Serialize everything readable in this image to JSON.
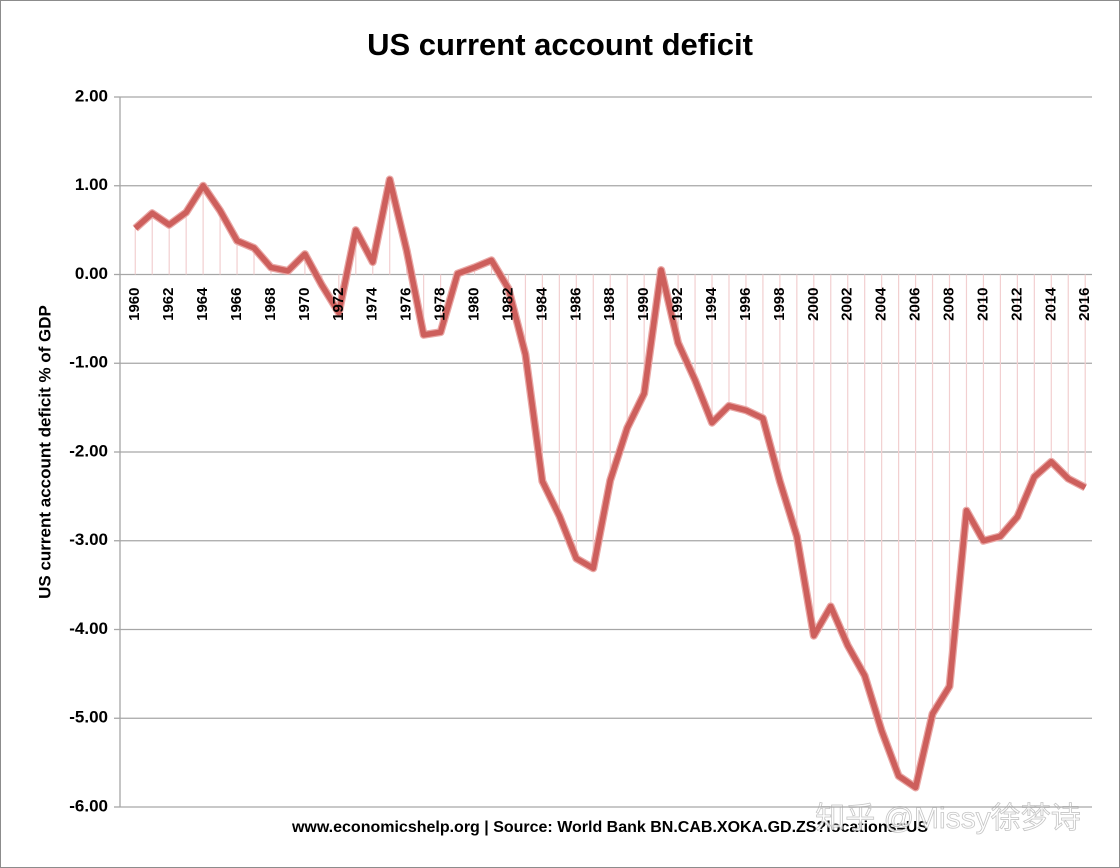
{
  "chart_data": {
    "type": "line",
    "title": "US current account deficit",
    "ylabel": "US current account deficit % of GDP",
    "footer": "www.economicshelp.org | Source:  World Bank BN.CAB.XOKA.GD.ZS?locations=US",
    "watermark": "知乎 @Missy徐梦诗",
    "color": "#cd5f5c",
    "x": [
      1960,
      1961,
      1962,
      1963,
      1964,
      1965,
      1966,
      1967,
      1968,
      1969,
      1970,
      1971,
      1972,
      1973,
      1974,
      1975,
      1976,
      1977,
      1978,
      1979,
      1980,
      1981,
      1982,
      1983,
      1984,
      1985,
      1986,
      1987,
      1988,
      1989,
      1990,
      1991,
      1992,
      1993,
      1994,
      1995,
      1996,
      1997,
      1998,
      1999,
      2000,
      2001,
      2002,
      2003,
      2004,
      2005,
      2006,
      2007,
      2008,
      2009,
      2010,
      2011,
      2012,
      2013,
      2014,
      2015,
      2016
    ],
    "values": [
      0.52,
      0.69,
      0.56,
      0.7,
      1.0,
      0.72,
      0.38,
      0.3,
      0.08,
      0.04,
      0.23,
      -0.12,
      -0.43,
      0.5,
      0.14,
      1.07,
      0.27,
      -0.68,
      -0.65,
      0.01,
      0.08,
      0.16,
      -0.16,
      -0.9,
      -2.33,
      -2.72,
      -3.2,
      -3.31,
      -2.32,
      -1.73,
      -1.34,
      0.05,
      -0.77,
      -1.19,
      -1.67,
      -1.48,
      -1.53,
      -1.62,
      -2.33,
      -2.95,
      -4.07,
      -3.74,
      -4.18,
      -4.52,
      -5.14,
      -5.65,
      -5.78,
      -4.95,
      -4.64,
      -2.66,
      -3.0,
      -2.95,
      -2.73,
      -2.28,
      -2.11,
      -2.3,
      -2.4
    ],
    "xlim": [
      1959.1,
      2016.4
    ],
    "xticks": [
      1960,
      1962,
      1964,
      1966,
      1968,
      1970,
      1972,
      1974,
      1976,
      1978,
      1980,
      1982,
      1984,
      1986,
      1988,
      1990,
      1992,
      1994,
      1996,
      1998,
      2000,
      2002,
      2004,
      2006,
      2008,
      2010,
      2012,
      2014,
      2016
    ],
    "ylim": [
      -6,
      2
    ],
    "yticks": [
      {
        "value": 2,
        "label": "2.00"
      },
      {
        "value": 1,
        "label": "1.00"
      },
      {
        "value": 0,
        "label": "0.00"
      },
      {
        "value": -1,
        "label": "-1.00"
      },
      {
        "value": -2,
        "label": "-2.00"
      },
      {
        "value": -3,
        "label": "-3.00"
      },
      {
        "value": -4,
        "label": "-4.00"
      },
      {
        "value": -5,
        "label": "-5.00"
      },
      {
        "value": -6,
        "label": "-6.00"
      }
    ],
    "grid": true
  }
}
